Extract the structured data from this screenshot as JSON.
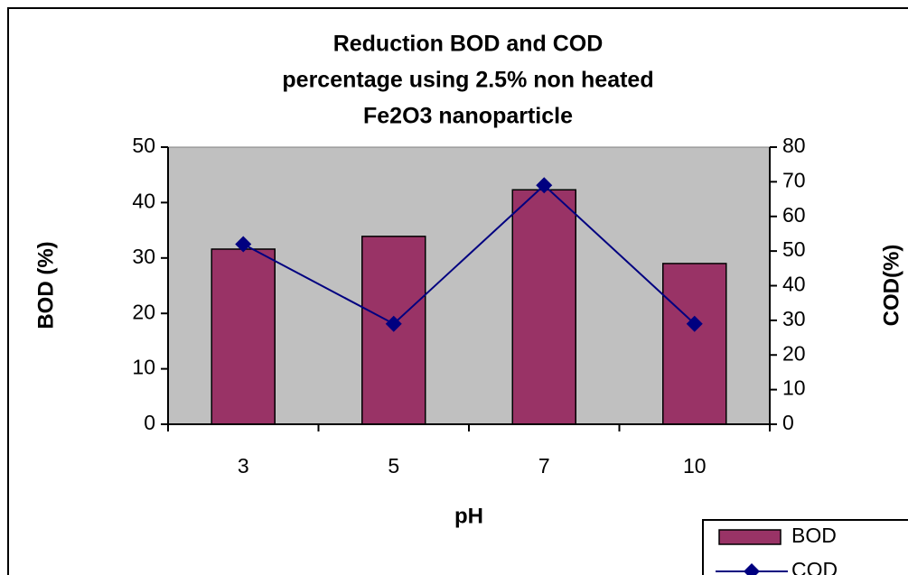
{
  "chart_data": {
    "type": "bar_line",
    "title": [
      "Reduction BOD and COD",
      "percentage using 2.5% non heated",
      "Fe2O3 nanoparticle"
    ],
    "x_label": "pH",
    "y_label": "BOD (%)",
    "y2_label": "COD(%)",
    "categories": [
      "3",
      "5",
      "7",
      "10"
    ],
    "series": [
      {
        "name": "BOD",
        "type": "bar",
        "color": "#993366",
        "values": [
          31.6,
          33.9,
          42.3,
          29
        ]
      },
      {
        "name": "COD",
        "type": "line",
        "axis": "y2",
        "color": "#000080",
        "values": [
          52,
          29,
          69,
          29
        ]
      }
    ],
    "ylim": [
      0,
      50
    ],
    "yticks": [
      0,
      10,
      20,
      30,
      40,
      50
    ],
    "y2lim": [
      0,
      80
    ],
    "y2ticks": [
      0,
      10,
      20,
      30,
      40,
      50,
      60,
      70,
      80
    ],
    "plot_background": "#c0c0c0",
    "legend": "bottom-right"
  }
}
